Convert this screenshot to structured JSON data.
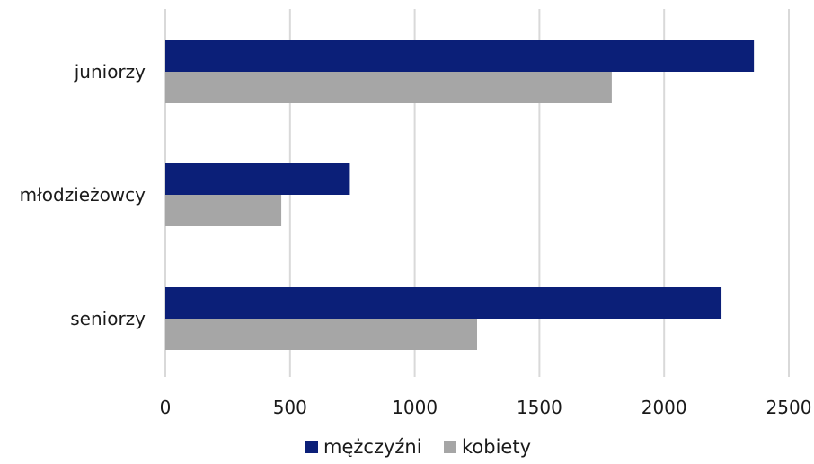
{
  "chart_data": {
    "type": "bar",
    "orientation": "horizontal",
    "categories": [
      "juniorzy",
      "młodzieżowcy",
      "seniorzy"
    ],
    "series": [
      {
        "name": "mężczyźni",
        "values": [
          2360,
          740,
          2230
        ],
        "color": "#0b1f78"
      },
      {
        "name": "kobiety",
        "values": [
          1790,
          465,
          1250
        ],
        "color": "#a6a6a6"
      }
    ],
    "xlim": [
      0,
      2500
    ],
    "xticks": [
      0,
      500,
      1000,
      1500,
      2000,
      2500
    ],
    "grid": "vertical",
    "legend_position": "bottom"
  }
}
